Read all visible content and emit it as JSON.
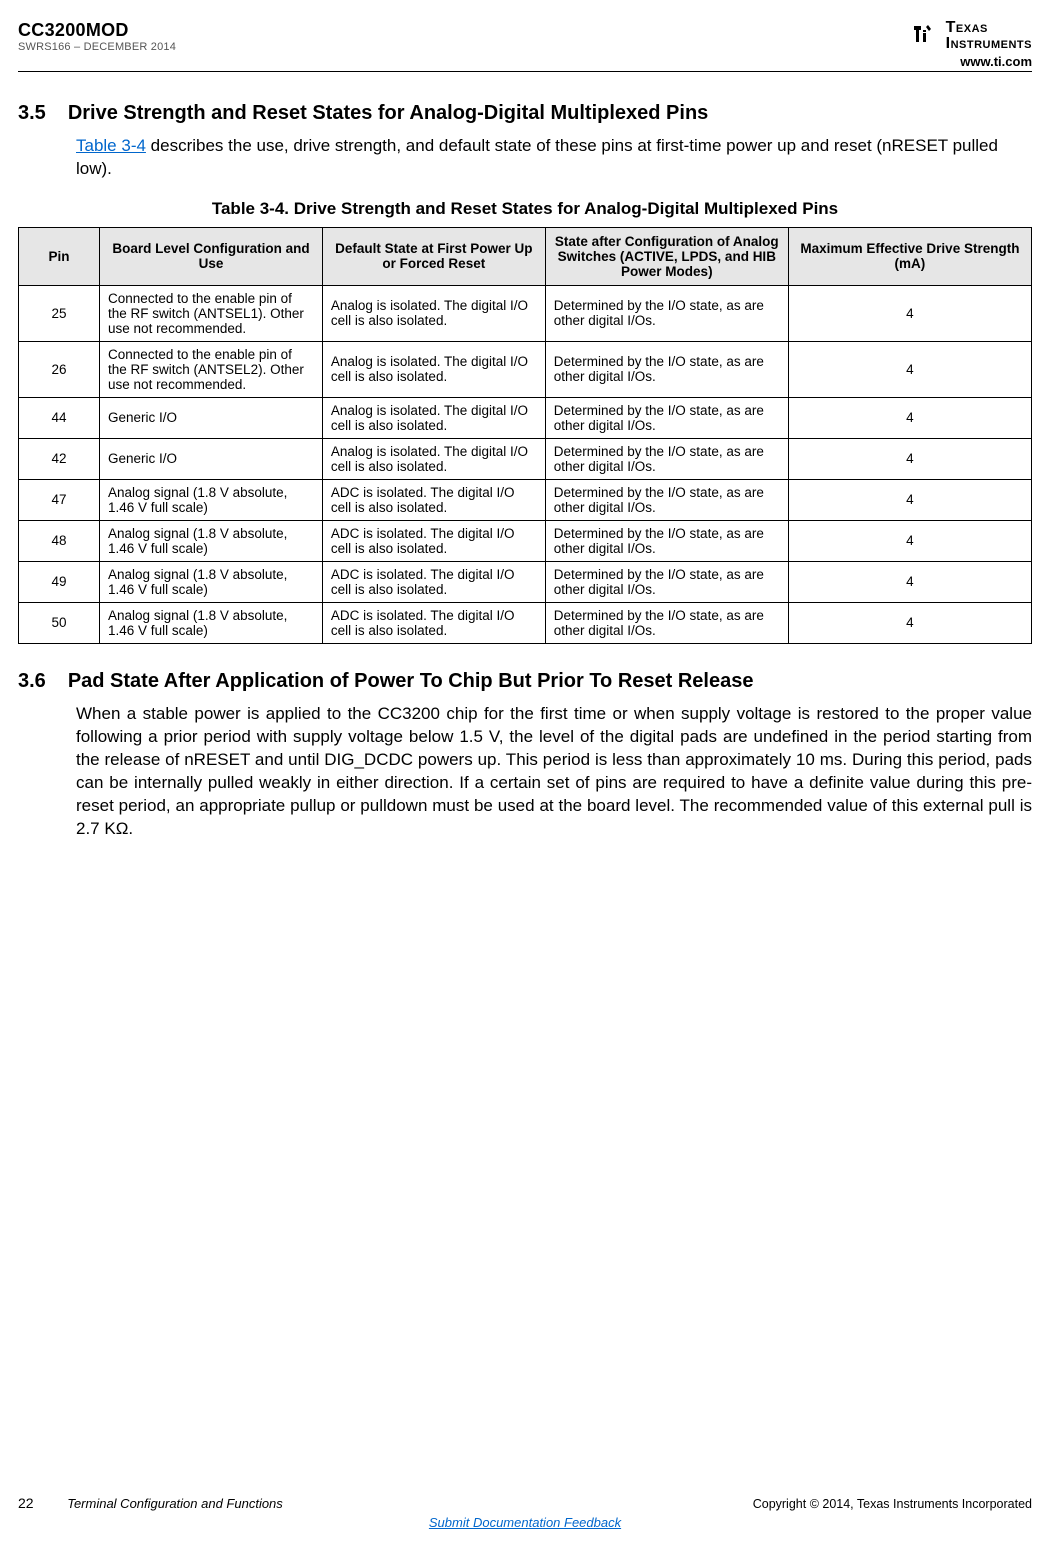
{
  "header": {
    "product": "CC3200MOD",
    "docref": "SWRS166 – DECEMBER 2014",
    "logo_text": "Texas Instruments",
    "url": "www.ti.com"
  },
  "section35": {
    "num": "3.5",
    "title": "Drive Strength and Reset States for Analog-Digital Multiplexed Pins",
    "body_pre": "Table 3-4",
    "body_post": " describes the use, drive strength, and default state of these pins at first-time power up and reset (nRESET pulled low)."
  },
  "table": {
    "caption": "Table 3-4. Drive Strength and Reset States for Analog-Digital Multiplexed Pins",
    "columns": [
      "Pin",
      "Board Level Configuration and Use",
      "Default State at First Power Up or Forced Reset",
      "State after Configuration of Analog Switches (ACTIVE, LPDS, and HIB Power Modes)",
      "Maximum Effective Drive Strength (mA)"
    ],
    "rows": [
      {
        "pin": "25",
        "conf": "Connected to the enable pin of the RF switch (ANTSEL1). Other use not recommended.",
        "def": "Analog is isolated. The digital I/O cell is also isolated.",
        "state": "Determined by the I/O state, as are other digital I/Os.",
        "drive": "4"
      },
      {
        "pin": "26",
        "conf": "Connected to the enable pin of the RF switch (ANTSEL2). Other use not recommended.",
        "def": "Analog is isolated. The digital I/O cell is also isolated.",
        "state": "Determined by the I/O state, as are other digital I/Os.",
        "drive": "4"
      },
      {
        "pin": "44",
        "conf": "Generic I/O",
        "def": "Analog is isolated. The digital I/O cell is also isolated.",
        "state": "Determined by the I/O state, as are other digital I/Os.",
        "drive": "4"
      },
      {
        "pin": "42",
        "conf": "Generic I/O",
        "def": "Analog is isolated. The digital I/O cell is also isolated.",
        "state": "Determined by the I/O state, as are other digital I/Os.",
        "drive": "4"
      },
      {
        "pin": "47",
        "conf": "Analog signal (1.8 V absolute, 1.46 V full scale)",
        "def": "ADC is isolated. The digital I/O cell is also isolated.",
        "state": "Determined by the I/O state, as are other digital I/Os.",
        "drive": "4"
      },
      {
        "pin": "48",
        "conf": "Analog signal (1.8 V absolute, 1.46 V full scale)",
        "def": "ADC is isolated. The digital I/O cell is also isolated.",
        "state": "Determined by the I/O state, as are other digital I/Os.",
        "drive": "4"
      },
      {
        "pin": "49",
        "conf": "Analog signal (1.8 V absolute, 1.46 V full scale)",
        "def": "ADC is isolated. The digital I/O cell is also isolated.",
        "state": "Determined by the I/O state, as are other digital I/Os.",
        "drive": "4"
      },
      {
        "pin": "50",
        "conf": "Analog signal (1.8 V absolute, 1.46 V full scale)",
        "def": "ADC is isolated. The digital I/O cell is also isolated.",
        "state": "Determined by the I/O state, as are other digital I/Os.",
        "drive": "4"
      }
    ]
  },
  "section36": {
    "num": "3.6",
    "title": "Pad State After Application of Power To Chip But Prior To Reset Release",
    "body": "When a stable power is applied to the CC3200 chip for the first time or when supply voltage is restored to the proper value following a prior period with supply voltage below 1.5 V, the level of the digital pads are undefined in the period starting from the release of nRESET and until DIG_DCDC powers up. This period is less than approximately 10 ms. During this period, pads can be internally pulled weakly in either direction. If a certain set of pins are required to have a definite value during this pre-reset period, an appropriate pullup or pulldown must be used at the board level. The recommended value of this external pull is 2.7 KΩ."
  },
  "footer": {
    "page": "22",
    "title": "Terminal Configuration and Functions",
    "copyright": "Copyright © 2014, Texas Instruments Incorporated",
    "submit": "Submit Documentation Feedback"
  }
}
